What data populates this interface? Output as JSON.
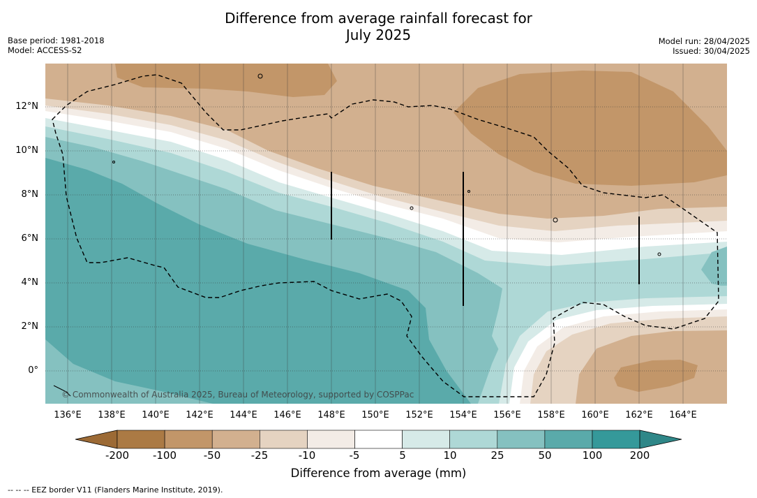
{
  "header": {
    "title_line1": "Difference from average rainfall forecast for",
    "title_line2": "July 2025",
    "base_period": "Base period: 1981-2018",
    "model": "Model: ACCESS-S2",
    "model_run": "Model run: 28/04/2025",
    "issued": "Issued: 30/04/2025"
  },
  "map": {
    "latitude_labels": [
      "12°N",
      "10°N",
      "8°N",
      "6°N",
      "4°N",
      "2°N",
      "0°"
    ],
    "longitude_labels": [
      "136°E",
      "138°E",
      "140°E",
      "142°E",
      "144°E",
      "146°E",
      "148°E",
      "150°E",
      "152°E",
      "154°E",
      "156°E",
      "158°E",
      "160°E",
      "162°E",
      "164°E"
    ],
    "copyright": "© Commonwealth of Australia 2025, Bureau of Meteorology, supported by COSPPac"
  },
  "colorbar": {
    "tick_labels": [
      "-200",
      "-100",
      "-50",
      "-25",
      "-10",
      "-5",
      "5",
      "10",
      "25",
      "50",
      "100",
      "200"
    ],
    "colors": [
      "#ab7a44",
      "#c29669",
      "#d2b08f",
      "#e5d3c1",
      "#f3ece6",
      "#ffffff",
      "#d6eae8",
      "#aed8d6",
      "#85c1c0",
      "#5aaaaa",
      "#35999a"
    ],
    "extend_low_color": "#9c6a35",
    "extend_high_color": "#2f8788",
    "title": "Difference from average (mm)"
  },
  "footer": {
    "legend_text": "--  --  -- EEZ border V11 (Flanders Marine Institute, 2019)."
  }
}
